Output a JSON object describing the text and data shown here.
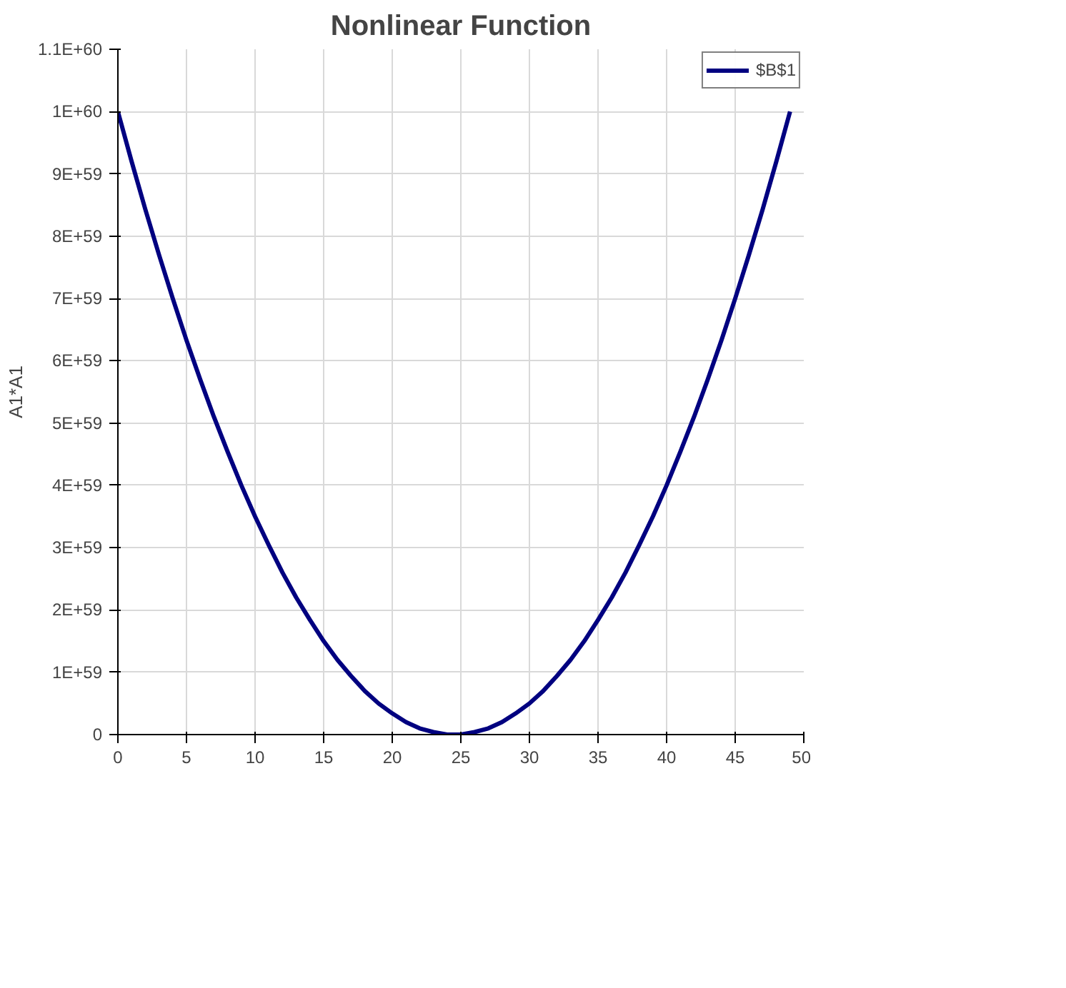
{
  "chart_data": {
    "type": "line",
    "title": "Nonlinear Function",
    "ylabel": "A1*A1",
    "x": [
      0,
      1,
      2,
      3,
      4,
      5,
      6,
      7,
      8,
      9,
      10,
      11,
      12,
      13,
      14,
      15,
      16,
      17,
      18,
      19,
      20,
      21,
      22,
      23,
      24,
      25,
      26,
      27,
      28,
      29,
      30,
      31,
      32,
      33,
      34,
      35,
      36,
      37,
      38,
      39,
      40,
      41,
      42,
      43,
      44,
      45,
      46,
      47,
      48,
      49
    ],
    "series": [
      {
        "name": "$B$1",
        "color": "#000080",
        "values": [
          1e+60,
          9.2e+59,
          8.43e+59,
          7.7e+59,
          7e+59,
          6.33e+59,
          5.7e+59,
          5.1e+59,
          4.54e+59,
          4e+59,
          3.5e+59,
          3.04e+59,
          2.6e+59,
          2.2e+59,
          1.84e+59,
          1.5e+59,
          1.2e+59,
          9.4e+58,
          7e+58,
          5e+58,
          3.4e+58,
          2e+58,
          1e+58,
          4e+57,
          0,
          0,
          4e+57,
          1e+58,
          2e+58,
          3.4e+58,
          5e+58,
          7e+58,
          9.4e+58,
          1.2e+59,
          1.5e+59,
          1.84e+59,
          2.2e+59,
          2.6e+59,
          3.04e+59,
          3.5e+59,
          4e+59,
          4.54e+59,
          5.1e+59,
          5.7e+59,
          6.33e+59,
          7e+59,
          7.7e+59,
          8.43e+59,
          9.2e+59,
          1e+60
        ]
      }
    ],
    "xlim": [
      0,
      50
    ],
    "xticks": [
      0,
      5,
      10,
      15,
      20,
      25,
      30,
      35,
      40,
      45,
      50
    ],
    "ylim": [
      0,
      1.1e+60
    ],
    "yticks": [
      {
        "value": 0,
        "label": "0"
      },
      {
        "value": 1e+59,
        "label": "1E+59"
      },
      {
        "value": 2e+59,
        "label": "2E+59"
      },
      {
        "value": 3e+59,
        "label": "3E+59"
      },
      {
        "value": 4e+59,
        "label": "4E+59"
      },
      {
        "value": 5e+59,
        "label": "5E+59"
      },
      {
        "value": 6e+59,
        "label": "6E+59"
      },
      {
        "value": 7e+59,
        "label": "7E+59"
      },
      {
        "value": 8e+59,
        "label": "8E+59"
      },
      {
        "value": 9e+59,
        "label": "9E+59"
      },
      {
        "value": 1e+60,
        "label": "1E+60"
      },
      {
        "value": 1.1e+60,
        "label": "1.1E+60"
      }
    ],
    "grid": true,
    "legend": "top right",
    "marker": "none",
    "line_style": "solid"
  }
}
